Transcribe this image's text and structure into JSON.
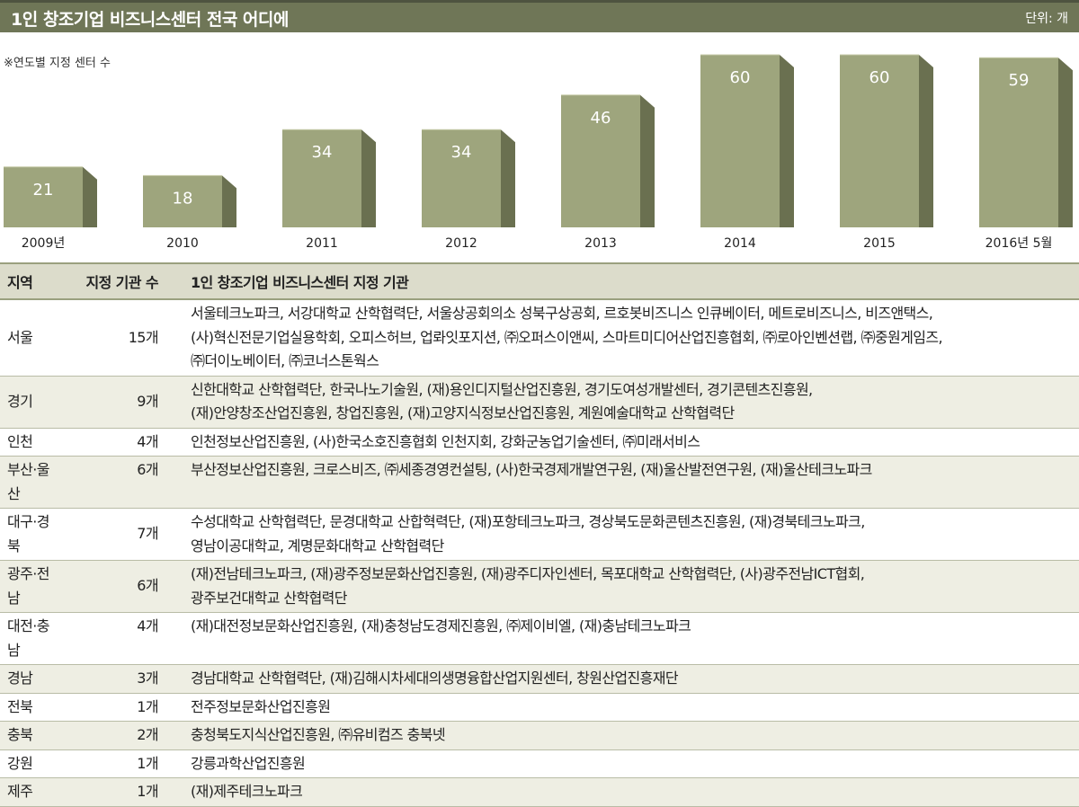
{
  "header": {
    "title": "1인 창조기업 비즈니스센터 전국 어디에",
    "unit": "단위: 개"
  },
  "subtitle": "※연도별 지정 센터 수",
  "colors": {
    "bar_front": "#9ea57d",
    "bar_side": "#6a7050",
    "bar_top": "#c7cba9",
    "title_bg": "#6f7657"
  },
  "chart_data": {
    "type": "bar",
    "categories": [
      "2009년",
      "2010",
      "2011",
      "2012",
      "2013",
      "2014",
      "2015",
      "2016년 5월"
    ],
    "values": [
      21,
      18,
      34,
      34,
      46,
      60,
      60,
      59
    ],
    "ylim": [
      0,
      60
    ],
    "grid": false,
    "data_labels": true
  },
  "table": {
    "headers": [
      "지역",
      "지정 기관 수",
      "1인 창조기업 비즈니스센터 지정 기관"
    ],
    "rows": [
      {
        "region": "서울",
        "count": "15개",
        "lines": [
          "서울테크노파크, 서강대학교 산학협력단, 서울상공회의소 성북구상공회, 르호봇비즈니스 인큐베이터, 메트로비즈니스, 비즈앤택스,",
          "(사)혁신전문기업실용학회, 오피스허브, 업롸잇포지션, ㈜오퍼스이앤씨, 스마트미디어산업진흥협회, ㈜로아인벤션랩, ㈜중원게임즈,",
          "㈜더이노베이터, ㈜코너스톤웍스"
        ]
      },
      {
        "region": "경기",
        "count": "9개",
        "lines": [
          "신한대학교 산학협력단, 한국나노기술원, (재)용인디지털산업진흥원, 경기도여성개발센터, 경기콘텐츠진흥원,",
          "(재)안양창조산업진흥원, 창업진흥원, (재)고양지식정보산업진흥원, 계원예술대학교 산학협력단"
        ]
      },
      {
        "region": "인천",
        "count": "4개",
        "lines": [
          "인천정보산업진흥원, (사)한국소호진흥협회 인천지회, 강화군농업기술센터, ㈜미래서비스"
        ]
      },
      {
        "region": "부산·울산",
        "count": "6개",
        "lines": [
          "부산정보산업진흥원, 크로스비즈, ㈜세종경영컨설팅, (사)한국경제개발연구원, (재)울산발전연구원, (재)울산테크노파크"
        ]
      },
      {
        "region": "대구·경북",
        "count": "7개",
        "lines": [
          "수성대학교 산학협력단, 문경대학교 산합혁력단, (재)포항테크노파크, 경상북도문화콘텐츠진흥원, (재)경북테크노파크,",
          "영남이공대학교, 계명문화대학교 산학협력단"
        ]
      },
      {
        "region": "광주·전남",
        "count": "6개",
        "lines": [
          "(재)전남테크노파크, (재)광주정보문화산업진흥원, (재)광주디자인센터, 목포대학교 산학협력단, (사)광주전남ICT협회,",
          "광주보건대학교 산학협력단"
        ]
      },
      {
        "region": "대전·충남",
        "count": "4개",
        "lines": [
          "(재)대전정보문화산업진흥원, (재)충청남도경제진흥원, ㈜제이비엘, (재)충남테크노파크"
        ]
      },
      {
        "region": "경남",
        "count": "3개",
        "lines": [
          "경남대학교 산학협력단, (재)김해시차세대의생명융합산업지원센터, 창원산업진흥재단"
        ]
      },
      {
        "region": "전북",
        "count": "1개",
        "lines": [
          "전주정보문화산업진흥원"
        ]
      },
      {
        "region": "충북",
        "count": "2개",
        "lines": [
          "충청북도지식산업진흥원, ㈜유비컴즈 충북넷"
        ]
      },
      {
        "region": "강원",
        "count": "1개",
        "lines": [
          "강릉과학산업진흥원"
        ]
      },
      {
        "region": "제주",
        "count": "1개",
        "lines": [
          "(재)제주테크노파크"
        ]
      }
    ]
  }
}
